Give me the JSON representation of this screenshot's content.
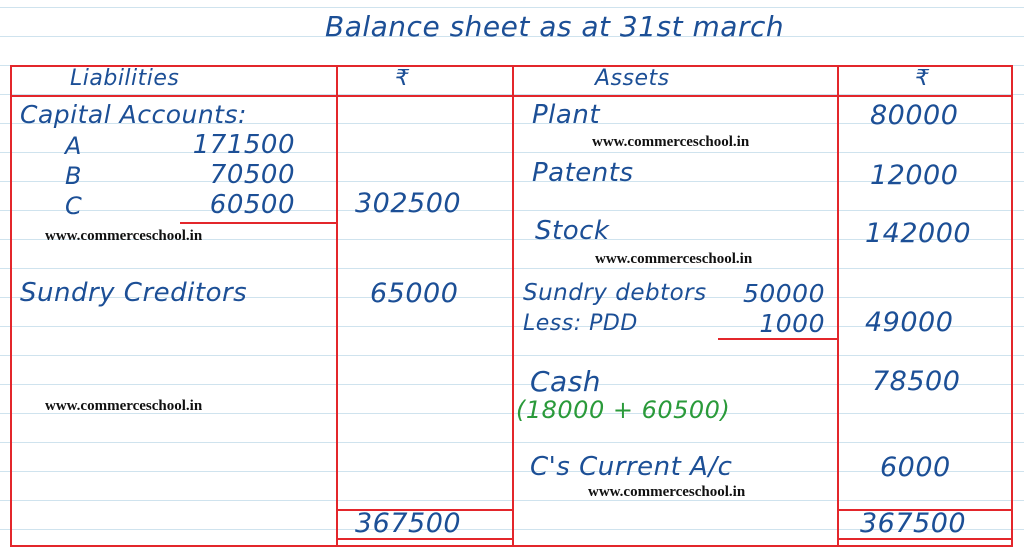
{
  "title": "Balance sheet as at 31st march",
  "headers": {
    "liabilities": "Liabilities",
    "liab_amount": "₹",
    "assets": "Assets",
    "asset_amount": "₹"
  },
  "liabilities": {
    "capital_label": "Capital Accounts:",
    "partners": [
      {
        "name": "A",
        "amount": "171500"
      },
      {
        "name": "B",
        "amount": "70500"
      },
      {
        "name": "C",
        "amount": "60500"
      }
    ],
    "capital_total": "302500",
    "creditors_label": "Sundry Creditors",
    "creditors_amount": "65000",
    "total": "367500"
  },
  "assets": {
    "plant": {
      "label": "Plant",
      "amount": "80000"
    },
    "patents": {
      "label": "Patents",
      "amount": "12000"
    },
    "stock": {
      "label": "Stock",
      "amount": "142000"
    },
    "debtors": {
      "label": "Sundry debtors",
      "amount": "50000",
      "less_label": "Less: PDD",
      "less_amount": "1000",
      "net": "49000"
    },
    "cash": {
      "label": "Cash",
      "amount": "78500",
      "note": "(18000 + 60500)"
    },
    "current_ac": {
      "label": "C's Current A/c",
      "amount": "6000"
    },
    "total": "367500"
  },
  "watermark": "www.commerceschool.in",
  "colors": {
    "ink": "#1c4f96",
    "rule": "#e3262b",
    "note": "#2a9a3a",
    "paper_lines": "#cfe3ee"
  }
}
